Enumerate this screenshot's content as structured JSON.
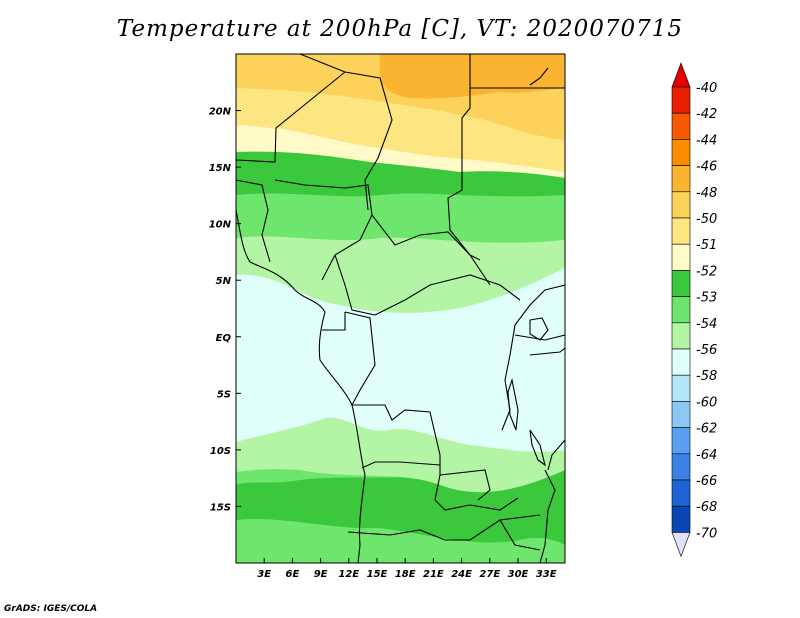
{
  "title": "Temperature at 200hPa [C], VT: 2020070715",
  "credit": "GrADS: IGES/COLA",
  "map": {
    "lon_range": [
      0,
      35
    ],
    "lat_range": [
      -20,
      25
    ],
    "lon_ticks": [
      "3E",
      "6E",
      "9E",
      "12E",
      "15E",
      "18E",
      "21E",
      "24E",
      "27E",
      "30E",
      "33E"
    ],
    "lat_ticks": [
      "20N",
      "15N",
      "10N",
      "5N",
      "EQ",
      "5S",
      "10S",
      "15S"
    ]
  },
  "colorbar": {
    "labels": [
      "-40",
      "-42",
      "-44",
      "-46",
      "-48",
      "-50",
      "-51",
      "-52",
      "-53",
      "-54",
      "-56",
      "-58",
      "-60",
      "-62",
      "-64",
      "-66",
      "-68",
      "-70"
    ],
    "colors": [
      "#e62000",
      "#f55a00",
      "#fa8c00",
      "#fab432",
      "#fcd25a",
      "#fde681",
      "#fffac8",
      "#3cc83c",
      "#6ee66e",
      "#b4f5a5",
      "#e1fffa",
      "#b4e6fa",
      "#8cc8f5",
      "#5aa0f0",
      "#3c82e6",
      "#1e64d2",
      "#0a46b4",
      "#0a0a7a"
    ],
    "end_colors": {
      "top": "#e60000",
      "bottom": "#e0e0f8"
    }
  },
  "fill_colors": {
    "orange": "#fab432",
    "light_orange": "#fcd25a",
    "yellow": "#fde681",
    "pale_yellow": "#fffac8",
    "green_dark": "#3cc83c",
    "green": "#6ee66e",
    "green_light": "#b4f5a5",
    "cyan": "#e1fffa"
  }
}
